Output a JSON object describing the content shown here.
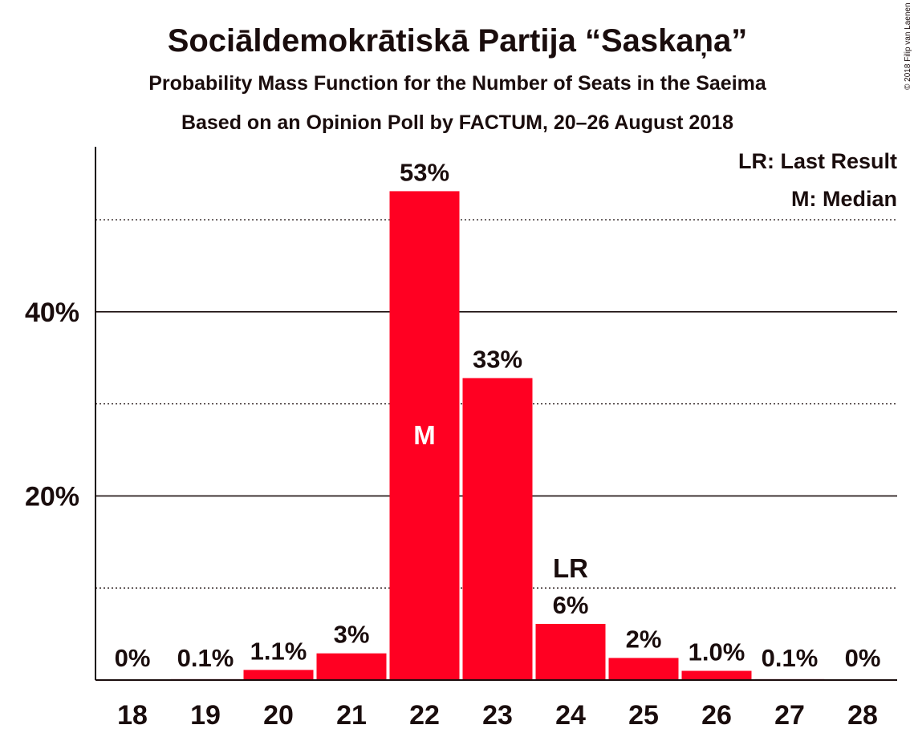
{
  "chart_data": {
    "type": "bar",
    "title": "Sociāldemokrātiskā Partija “Saskaņa”",
    "subtitle": "Probability Mass Function for the Number of Seats in the Saeima",
    "subtitle2": "Based on an Opinion Poll by FACTUM, 20–26 August 2018",
    "legend": [
      "LR: Last Result",
      "M: Median"
    ],
    "legend_placement": "top-right",
    "copyright": "© 2018 Filip van Laenen",
    "categories": [
      "18",
      "19",
      "20",
      "21",
      "22",
      "23",
      "24",
      "25",
      "26",
      "27",
      "28"
    ],
    "values": [
      0,
      0.1,
      1.1,
      2.9,
      53.1,
      32.8,
      6.1,
      2.4,
      1.0,
      0.1,
      0
    ],
    "value_labels": [
      "0%",
      "0.1%",
      "1.1%",
      "3%",
      "53%",
      "33%",
      "6%",
      "2%",
      "1.0%",
      "0.1%",
      "0%"
    ],
    "median_category": "22",
    "median_marker": "M",
    "last_result_category": "24",
    "last_result_marker": "LR",
    "yticks": [
      20,
      40
    ],
    "ytick_labels": [
      "20%",
      "40%"
    ],
    "gridlines_major": [
      20,
      40
    ],
    "gridlines_minor": [
      10,
      30,
      50
    ],
    "ylim": [
      0,
      58
    ],
    "bar_color": "#ff0022",
    "text_color": "#1a0d0d"
  }
}
